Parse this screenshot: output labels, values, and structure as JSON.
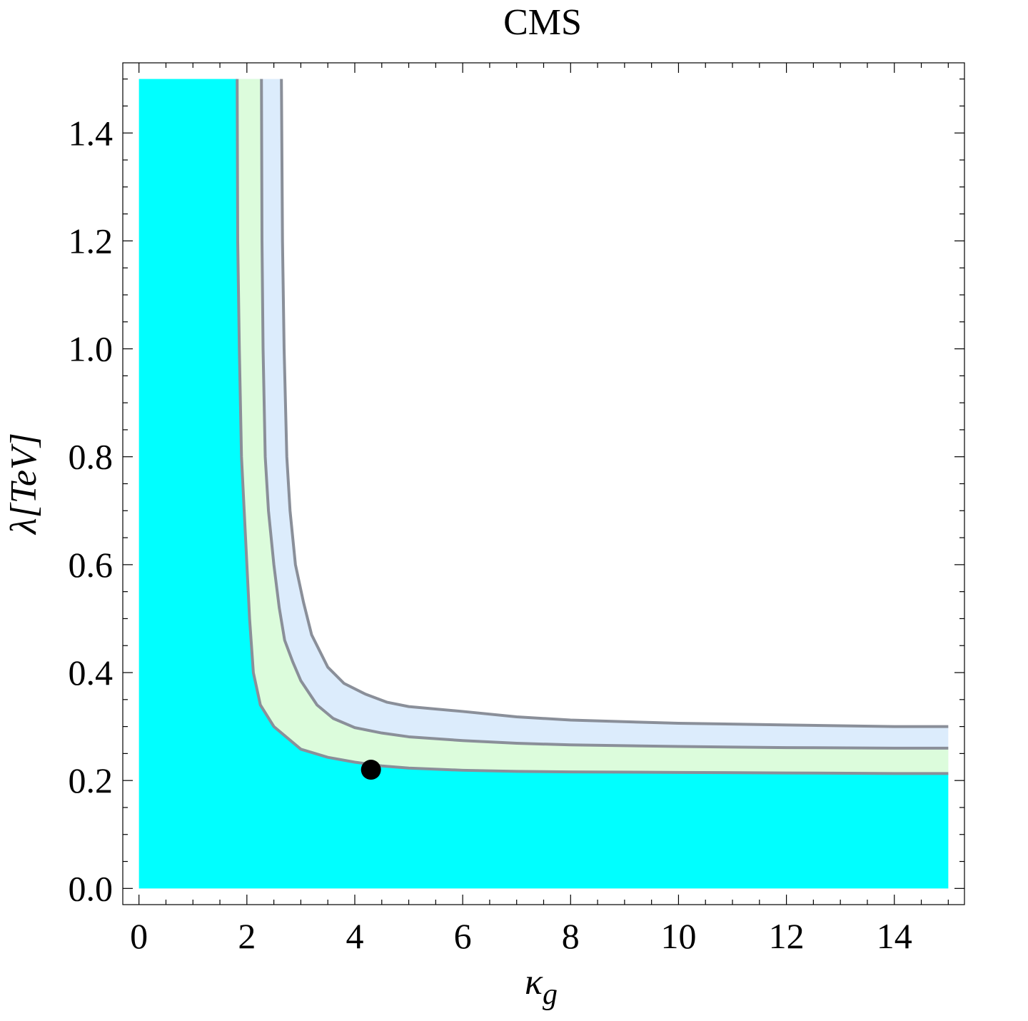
{
  "chart_data": {
    "type": "area",
    "title": "CMS",
    "xlabel": "κ",
    "xlabel_sub": "g",
    "ylabel": "λ[TeV]",
    "xlim": [
      -0.3,
      15.3
    ],
    "ylim": [
      -0.03,
      1.53
    ],
    "x_ticks": [
      0,
      2,
      4,
      6,
      8,
      10,
      12,
      14
    ],
    "x_tick_labels": [
      "0",
      "2",
      "4",
      "6",
      "8",
      "10",
      "12",
      "14"
    ],
    "y_ticks": [
      0.0,
      0.2,
      0.4,
      0.6,
      0.8,
      1.0,
      1.2,
      1.4
    ],
    "y_tick_labels": [
      "0.0",
      "0.2",
      "0.4",
      "0.6",
      "0.8",
      "1.0",
      "1.2",
      "1.4"
    ],
    "grid": false,
    "series": [
      {
        "color": "#00ffff",
        "x": [
          1.82,
          1.83,
          1.86,
          1.9,
          1.95,
          2.0,
          2.05,
          2.12,
          2.25,
          2.5,
          3.0,
          3.5,
          4.0,
          4.5,
          5.0,
          6.0,
          7.0,
          8.0,
          10.0,
          12.0,
          14.0,
          15.0
        ],
        "y": [
          1.5,
          1.2,
          1.0,
          0.8,
          0.7,
          0.6,
          0.5,
          0.4,
          0.34,
          0.3,
          0.258,
          0.243,
          0.234,
          0.227,
          0.223,
          0.219,
          0.217,
          0.216,
          0.215,
          0.214,
          0.213,
          0.213
        ]
      },
      {
        "color": "#dcfcdc",
        "x": [
          2.27,
          2.28,
          2.3,
          2.34,
          2.4,
          2.5,
          2.6,
          2.7,
          2.85,
          3.0,
          3.3,
          3.6,
          4.0,
          4.5,
          5.0,
          6.0,
          7.0,
          8.0,
          10.0,
          12.0,
          14.0,
          15.0
        ],
        "y": [
          1.5,
          1.2,
          1.0,
          0.8,
          0.7,
          0.6,
          0.52,
          0.46,
          0.42,
          0.385,
          0.34,
          0.315,
          0.298,
          0.288,
          0.281,
          0.274,
          0.269,
          0.266,
          0.263,
          0.261,
          0.26,
          0.26
        ]
      },
      {
        "color": "#dcecfc",
        "x": [
          2.64,
          2.66,
          2.69,
          2.74,
          2.8,
          2.9,
          3.05,
          3.2,
          3.5,
          3.8,
          4.2,
          4.6,
          5.0,
          6.0,
          7.0,
          8.0,
          10.0,
          12.0,
          14.0,
          15.0
        ],
        "y": [
          1.5,
          1.2,
          1.0,
          0.8,
          0.7,
          0.6,
          0.53,
          0.47,
          0.41,
          0.38,
          0.36,
          0.345,
          0.337,
          0.328,
          0.318,
          0.312,
          0.306,
          0.303,
          0.3,
          0.3
        ]
      }
    ],
    "region_x_range": [
      0,
      15
    ],
    "region_y_range": [
      0,
      1.5
    ],
    "annotations": [
      {
        "type": "point",
        "x": 4.3,
        "y": 0.22,
        "color": "#000000"
      }
    ]
  }
}
